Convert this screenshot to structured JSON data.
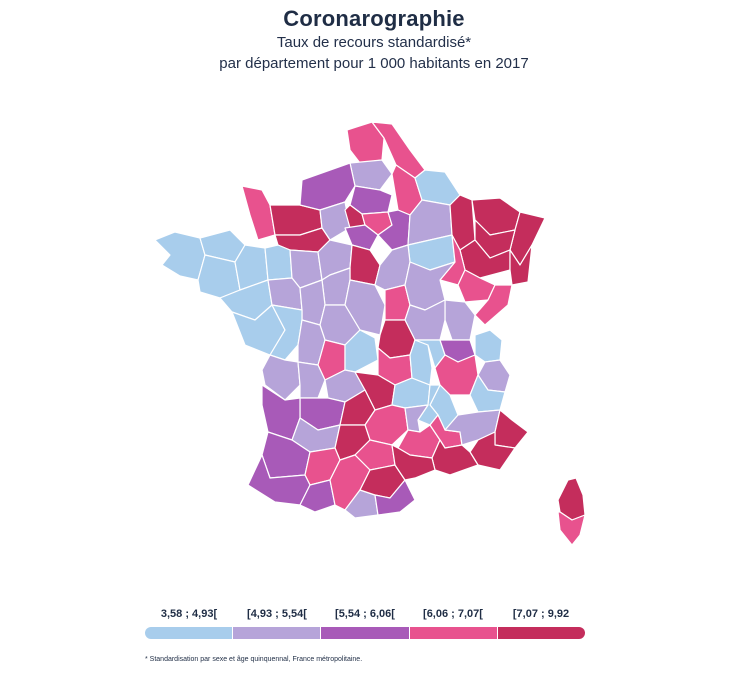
{
  "title": "Coronarographie",
  "subtitle_line1": "Taux de recours standardisé*",
  "subtitle_line2": "par département pour 1 000 habitants en 2017",
  "footnote": "* Standardisation par sexe et âge quinquennal, France métropolitaine.",
  "colors": {
    "c1": "#a8cdec",
    "c2": "#b6a4d9",
    "c3": "#a85ab8",
    "c4": "#e8528e",
    "c5": "#c42d5c",
    "border": "#ffffff"
  },
  "legend": [
    {
      "label": "3,58 ; 4,93[",
      "color": "#a8cdec"
    },
    {
      "label": "[4,93 ; 5,54[",
      "color": "#b6a4d9"
    },
    {
      "label": "[5,54 ; 6,06[",
      "color": "#a85ab8"
    },
    {
      "label": "[6,06 ; 7,07[",
      "color": "#e8528e"
    },
    {
      "label": "[7,07 ; 9,92",
      "color": "#c42d5c"
    }
  ]
}
